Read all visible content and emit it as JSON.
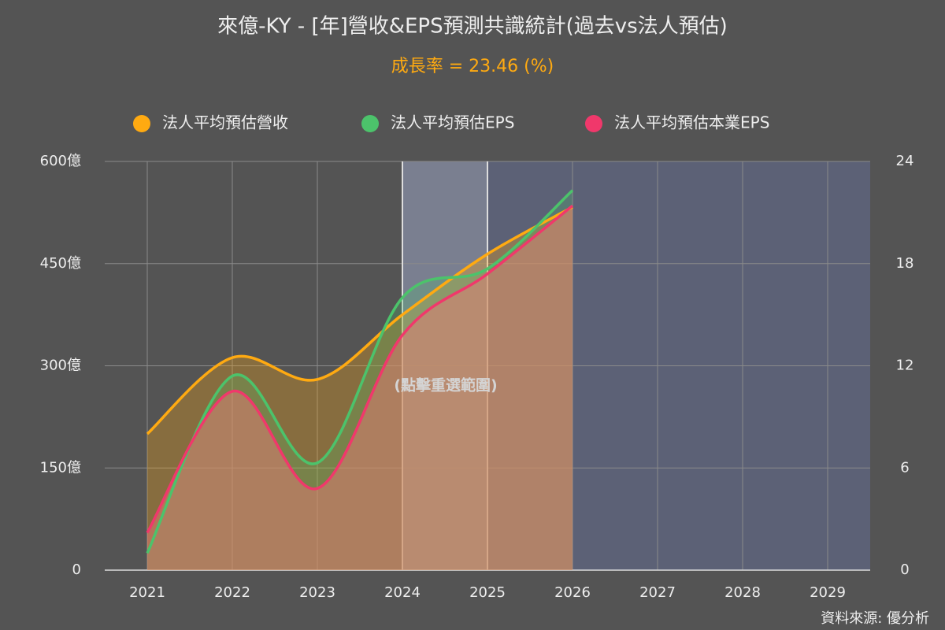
{
  "chart_data": {
    "type": "line",
    "title": "來億-KY - [年]營收&EPS預測共識統計(過去vs法人預估)",
    "subtitle": "成長率 = 23.46 (%)",
    "annotation": "(點擊重選範圍)",
    "source": "資料來源: 優分析",
    "categories": [
      "2021",
      "2022",
      "2023",
      "2024",
      "2025",
      "2026",
      "2027",
      "2028",
      "2029"
    ],
    "series": [
      {
        "name": "法人平均預估營收",
        "color": "#ffaa11",
        "axis": "y",
        "values": [
          200,
          312,
          280,
          375,
          464,
          533,
          null,
          null,
          null
        ]
      },
      {
        "name": "法人平均預估EPS",
        "color": "#4cc36b",
        "axis": "y2",
        "values": [
          1.0,
          11.4,
          6.3,
          16.0,
          17.7,
          22.3,
          null,
          null,
          null
        ]
      },
      {
        "name": "法人平均預估本業EPS",
        "color": "#f0386b",
        "axis": "y2",
        "values": [
          2.2,
          10.5,
          4.8,
          13.8,
          17.4,
          21.4,
          null,
          null,
          null
        ]
      }
    ],
    "ylim": [
      0,
      600
    ],
    "yticks": [
      0,
      {
        "value": 150,
        "label": "150億"
      },
      {
        "value": 300,
        "label": "300億"
      },
      {
        "value": 450,
        "label": "450億"
      },
      {
        "value": 600,
        "label": "600億"
      }
    ],
    "y2lim": [
      0,
      24
    ],
    "y2ticks": [
      0,
      6,
      12,
      18,
      24
    ],
    "grid": true,
    "legend": "top"
  }
}
